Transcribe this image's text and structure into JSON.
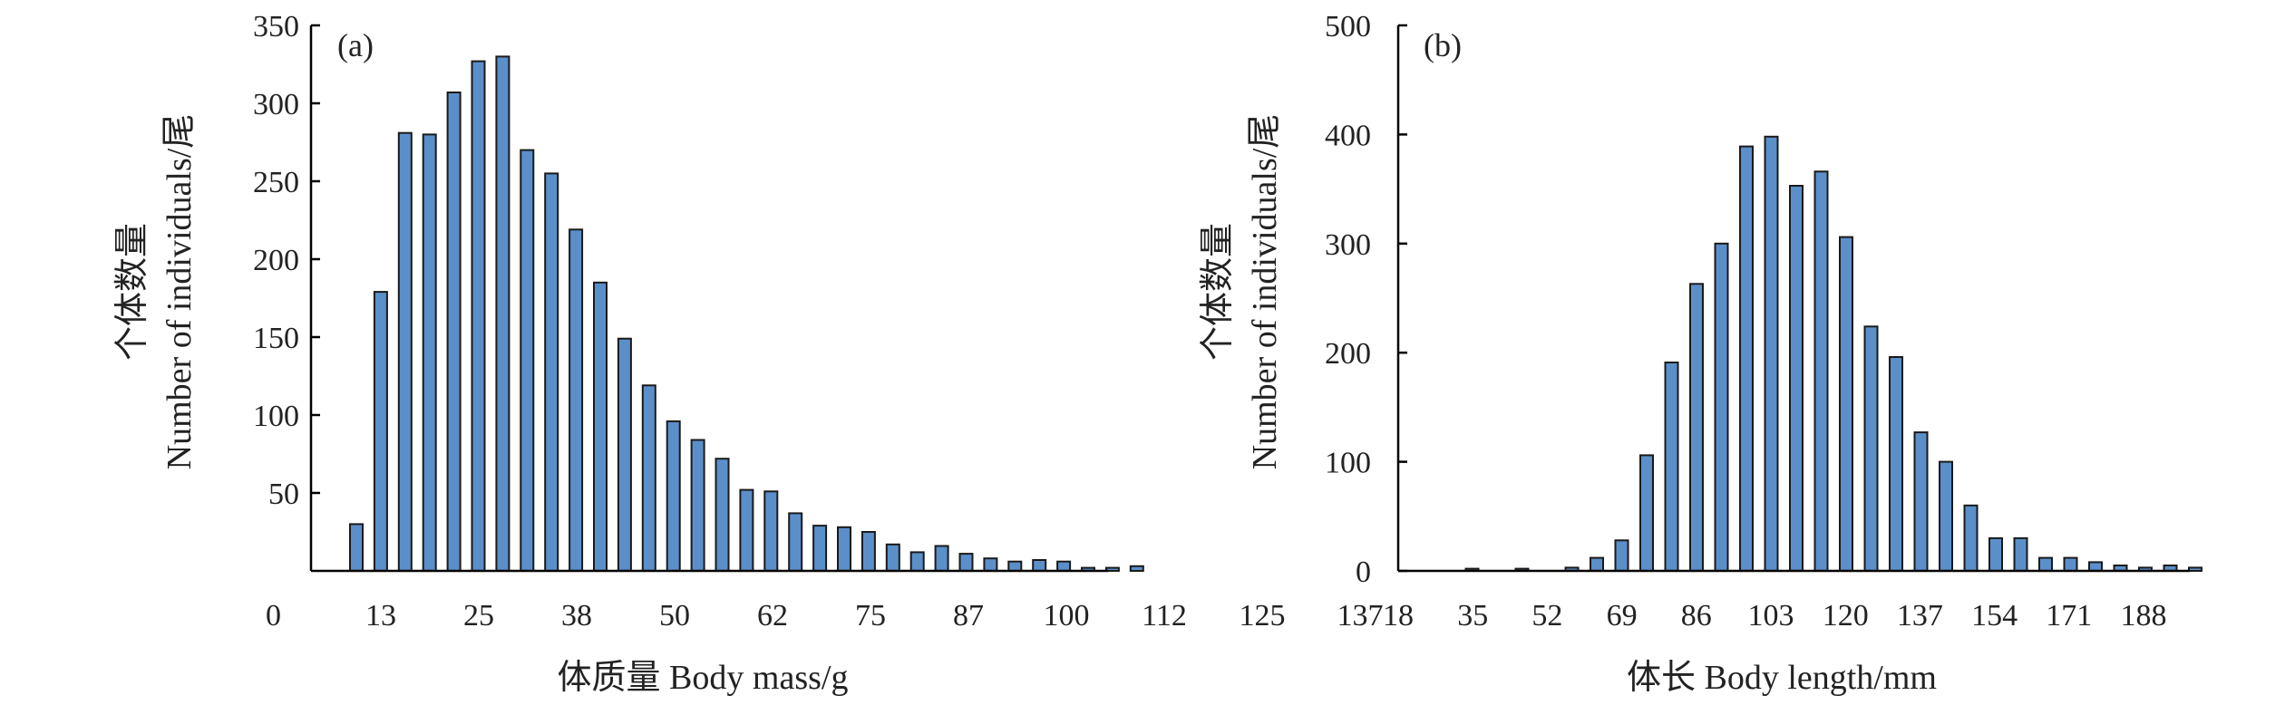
{
  "colors": {
    "bar": "#5b8fc9",
    "axis": "#000000"
  },
  "chart_data": [
    {
      "type": "bar",
      "panel_label": "(a)",
      "xlabel": "体质量 Body mass/g",
      "ylabel_line1": "个体数量",
      "ylabel_line2": "Number of individuals/尾",
      "ylim": [
        0,
        350
      ],
      "yticks": [
        50,
        100,
        150,
        200,
        250,
        300,
        350
      ],
      "yzero_label": "0",
      "xtick_labels": [
        "13",
        "25",
        "38",
        "50",
        "62",
        "75",
        "87",
        "100",
        "112",
        "125",
        "137"
      ],
      "values": [
        30,
        179,
        281,
        280,
        307,
        327,
        330,
        270,
        255,
        219,
        185,
        149,
        119,
        96,
        84,
        72,
        52,
        51,
        37,
        29,
        28,
        25,
        17,
        12,
        16,
        11,
        8,
        6,
        7,
        6,
        2,
        2,
        3
      ],
      "grid": false
    },
    {
      "type": "bar",
      "panel_label": "(b)",
      "xlabel": "体长 Body length/mm",
      "ylabel_line1": "个体数量",
      "ylabel_line2": "Number of individuals/尾",
      "ylim": [
        0,
        500
      ],
      "yticks": [
        0,
        100,
        200,
        300,
        400,
        500
      ],
      "xtick_labels": [
        "18",
        "35",
        "52",
        "69",
        "86",
        "103",
        "120",
        "137",
        "154",
        "171",
        "188"
      ],
      "values": [
        0,
        2,
        0,
        2,
        0,
        3,
        12,
        28,
        106,
        191,
        263,
        300,
        389,
        398,
        353,
        366,
        306,
        224,
        196,
        127,
        100,
        60,
        30,
        30,
        12,
        12,
        8,
        5,
        3,
        5,
        3
      ],
      "grid": false
    }
  ]
}
